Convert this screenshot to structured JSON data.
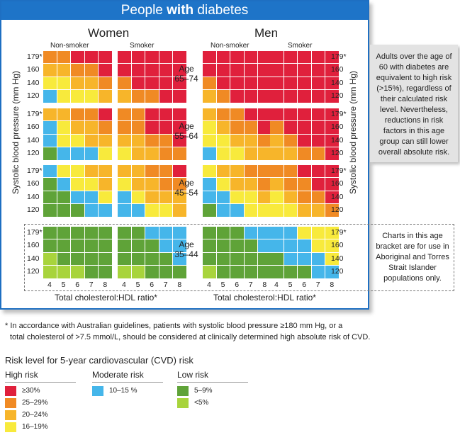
{
  "title": {
    "pre": "People ",
    "bold": "with",
    "post": " diabetes"
  },
  "sections": {
    "women": "Women",
    "men": "Men"
  },
  "columns": {
    "nonsmoker": "Non-smoker",
    "smoker": "Smoker"
  },
  "age_prefix": "Age",
  "y_axis_label": "Systolic blood pressure (mm Hg)",
  "x_axis_label": "Total cholesterol:HDL ratio*",
  "notes": {
    "over60": "Adults over the age of 60 with diabetes are equivalent to high risk (>15%), regardless of their calculated risk level. Nevertheless, reductions in risk factors in this age group can still lower overall absolute risk.",
    "age35_44": "Charts in this age bracket are for use in Aboriginal and Torres Strait Islander populations only."
  },
  "footnote": {
    "line1": "* In accordance with Australian guidelines, patients with systolic blood pressure ≥180 mm Hg, or a",
    "line2": "total cholesterol of >7.5 mmol/L, should be considered at clinically determined high absolute risk of CVD."
  },
  "legend": {
    "title": "Risk level for 5-year cardiovascular (CVD) risk",
    "high_title": "High risk",
    "moderate_title": "Moderate risk",
    "low_title": "Low risk",
    "items": [
      {
        "level": 5,
        "label": "≥30%",
        "color": "#e0203c"
      },
      {
        "level": 4,
        "label": "25–29%",
        "color": "#f08a24"
      },
      {
        "level": 3,
        "label": "20–24%",
        "color": "#f7b52a"
      },
      {
        "level": 2,
        "label": "16–19%",
        "color": "#f8ea3c"
      },
      {
        "level": 1,
        "label": "10–15 %",
        "color": "#45b6ea"
      },
      {
        "level": 6,
        "label": "5–9%",
        "color": "#5fa338"
      },
      {
        "level": 7,
        "label": "<5%",
        "color": "#a8d43c"
      }
    ]
  },
  "chart_data": {
    "type": "heatmap",
    "title": "People with diabetes",
    "xlabel": "Total cholesterol:HDL ratio*",
    "ylabel": "Systolic blood pressure (mm Hg)",
    "x_ticks": [
      "4",
      "5",
      "6",
      "7",
      "8"
    ],
    "y_ticks": [
      "179*",
      "160",
      "140",
      "120"
    ],
    "value_key": "1 = 10–15%, 2 = 16–19%, 3 = 20–24%, 4 = 25–29%, 5 = ≥30%, 6 = 5–9%, 7 = <5%",
    "age_groups": [
      {
        "age": "65–74",
        "grids": {
          "women_nonsmoker": [
            [
              4,
              4,
              5,
              5,
              5
            ],
            [
              3,
              3,
              4,
              4,
              5
            ],
            [
              2,
              2,
              3,
              3,
              4
            ],
            [
              1,
              2,
              2,
              2,
              3
            ]
          ],
          "women_smoker": [
            [
              5,
              5,
              5,
              5,
              5
            ],
            [
              5,
              5,
              5,
              5,
              5
            ],
            [
              4,
              5,
              5,
              5,
              5
            ],
            [
              3,
              4,
              4,
              5,
              5
            ]
          ],
          "men_nonsmoker": [
            [
              5,
              5,
              5,
              5,
              5
            ],
            [
              5,
              5,
              5,
              5,
              5
            ],
            [
              4,
              5,
              5,
              5,
              5
            ],
            [
              3,
              4,
              5,
              5,
              5
            ]
          ],
          "men_smoker": [
            [
              5,
              5,
              5,
              5,
              5
            ],
            [
              5,
              5,
              5,
              5,
              5
            ],
            [
              5,
              5,
              5,
              5,
              5
            ],
            [
              5,
              5,
              5,
              5,
              5
            ]
          ]
        }
      },
      {
        "age": "55–64",
        "grids": {
          "women_nonsmoker": [
            [
              3,
              3,
              4,
              4,
              5
            ],
            [
              1,
              2,
              3,
              3,
              4
            ],
            [
              1,
              2,
              2,
              3,
              3
            ],
            [
              6,
              1,
              1,
              1,
              2
            ]
          ],
          "women_smoker": [
            [
              4,
              4,
              5,
              5,
              5
            ],
            [
              4,
              4,
              5,
              5,
              5
            ],
            [
              3,
              3,
              4,
              4,
              5
            ],
            [
              2,
              3,
              3,
              4,
              4
            ]
          ],
          "men_nonsmoker": [
            [
              3,
              4,
              4,
              5,
              5
            ],
            [
              2,
              3,
              4,
              4,
              5
            ],
            [
              2,
              2,
              3,
              3,
              4
            ],
            [
              1,
              2,
              2,
              3,
              3
            ]
          ],
          "men_smoker": [
            [
              5,
              5,
              5,
              5,
              5
            ],
            [
              4,
              5,
              5,
              5,
              5
            ],
            [
              3,
              4,
              5,
              5,
              5
            ],
            [
              3,
              3,
              4,
              4,
              5
            ]
          ]
        }
      },
      {
        "age": "45–54",
        "grids": {
          "women_nonsmoker": [
            [
              1,
              2,
              2,
              3,
              3
            ],
            [
              6,
              1,
              2,
              2,
              3
            ],
            [
              6,
              6,
              1,
              1,
              2
            ],
            [
              6,
              6,
              6,
              1,
              1
            ]
          ],
          "women_smoker": [
            [
              3,
              3,
              4,
              4,
              5
            ],
            [
              2,
              3,
              3,
              4,
              4
            ],
            [
              1,
              2,
              3,
              3,
              3
            ],
            [
              1,
              1,
              2,
              2,
              3
            ]
          ],
          "men_nonsmoker": [
            [
              2,
              3,
              3,
              4,
              4
            ],
            [
              1,
              2,
              3,
              3,
              4
            ],
            [
              1,
              1,
              2,
              2,
              3
            ],
            [
              6,
              1,
              1,
              2,
              2
            ]
          ],
          "men_smoker": [
            [
              4,
              4,
              5,
              5,
              5
            ],
            [
              3,
              4,
              4,
              5,
              5
            ],
            [
              2,
              3,
              4,
              4,
              5
            ],
            [
              2,
              2,
              3,
              3,
              4
            ]
          ]
        }
      },
      {
        "age": "35–44",
        "grids": {
          "women_nonsmoker": [
            [
              6,
              6,
              6,
              6,
              6
            ],
            [
              6,
              6,
              6,
              6,
              6
            ],
            [
              7,
              6,
              6,
              6,
              6
            ],
            [
              7,
              7,
              7,
              6,
              6
            ]
          ],
          "women_smoker": [
            [
              6,
              6,
              1,
              1,
              1
            ],
            [
              6,
              6,
              6,
              1,
              1
            ],
            [
              6,
              6,
              6,
              6,
              1
            ],
            [
              7,
              7,
              6,
              6,
              6
            ]
          ],
          "men_nonsmoker": [
            [
              6,
              6,
              6,
              1,
              1
            ],
            [
              6,
              6,
              6,
              6,
              1
            ],
            [
              6,
              6,
              6,
              6,
              6
            ],
            [
              7,
              6,
              6,
              6,
              6
            ]
          ],
          "men_smoker": [
            [
              1,
              1,
              2,
              2,
              2
            ],
            [
              1,
              1,
              1,
              2,
              2
            ],
            [
              6,
              1,
              1,
              1,
              2
            ],
            [
              6,
              6,
              6,
              1,
              1
            ]
          ]
        }
      }
    ]
  }
}
